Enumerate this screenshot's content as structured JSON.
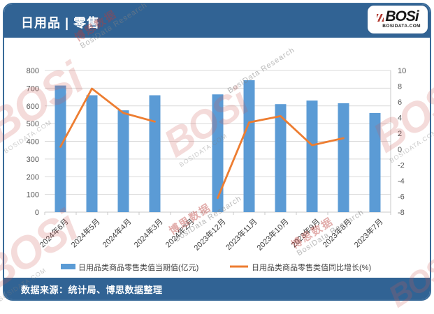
{
  "header": {
    "title": "日用品 | 零售"
  },
  "logo": {
    "brand": "BOSi",
    "site": "BOSIDATA.COM"
  },
  "footer": {
    "source": "数据来源：统计局、博思数据整理"
  },
  "watermark": {
    "brand": "BOSi",
    "site": "BOSIDATA.COM",
    "cn": "博思数据",
    "en": "BosiData Research"
  },
  "colors": {
    "bar": "#5B9BD5",
    "line": "#ED7D31",
    "band": "#316394",
    "grid": "#D9D9D9",
    "axis_frame": "#C8C8C8",
    "y_label": "#595959",
    "x_label": "#404040"
  },
  "chart_data": {
    "type": "bar",
    "subtype": "bar+line combo, dual axis",
    "categories": [
      "2024年6月",
      "2024年5月",
      "2024年4月",
      "2024年3月",
      "2024年2月",
      "2023年12月",
      "2023年11月",
      "2023年10月",
      "2023年9月",
      "2023年8月",
      "2023年7月"
    ],
    "series": [
      {
        "name": "日用品类商品零售类值当期值(亿元)",
        "type": "bar",
        "axis": "left",
        "values": [
          715,
          660,
          575,
          660,
          null,
          665,
          745,
          610,
          630,
          615,
          560
        ]
      },
      {
        "name": "日用品类商品零售类值同比增长(%)",
        "type": "line",
        "axis": "right",
        "values": [
          0.3,
          7.7,
          4.6,
          3.5,
          null,
          -6.2,
          3.4,
          4.2,
          0.5,
          1.4,
          null
        ]
      }
    ],
    "left_axis": {
      "min": 0,
      "max": 800,
      "ticks": [
        0,
        100,
        200,
        300,
        400,
        500,
        600,
        700,
        800
      ]
    },
    "right_axis": {
      "min": -8,
      "max": 10,
      "ticks": [
        10,
        8,
        6,
        4,
        2,
        0,
        -2,
        -4,
        -6,
        -8
      ]
    },
    "grid": true,
    "legend_position": "bottom",
    "x_labels_rotated_deg": -45
  }
}
